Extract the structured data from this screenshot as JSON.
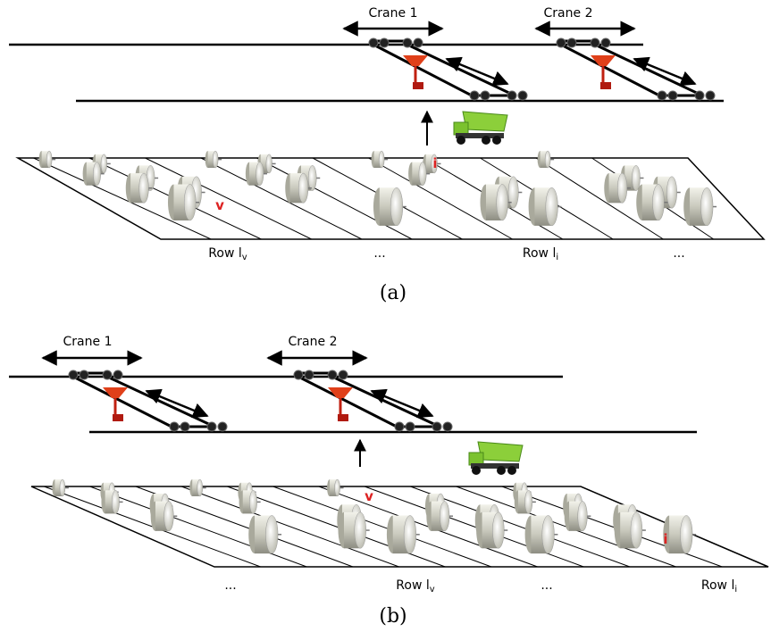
{
  "panels": [
    {
      "caption": "(a)",
      "cranes": [
        {
          "label": "Crane 1"
        },
        {
          "label": "Crane 2"
        }
      ],
      "row_labels": [
        {
          "text": "Row l",
          "sub": "v"
        },
        {
          "text": "..."
        },
        {
          "text": "Row l",
          "sub": "i"
        },
        {
          "text": "..."
        }
      ],
      "coil_labels": [
        "v",
        "i"
      ]
    },
    {
      "caption": "(b)",
      "cranes": [
        {
          "label": "Crane 1"
        },
        {
          "label": "Crane 2"
        }
      ],
      "row_labels": [
        {
          "text": "..."
        },
        {
          "text": "Row l",
          "sub": "v"
        },
        {
          "text": "..."
        },
        {
          "text": "Row l",
          "sub": "i"
        }
      ],
      "coil_labels": [
        "v",
        "i"
      ]
    }
  ]
}
